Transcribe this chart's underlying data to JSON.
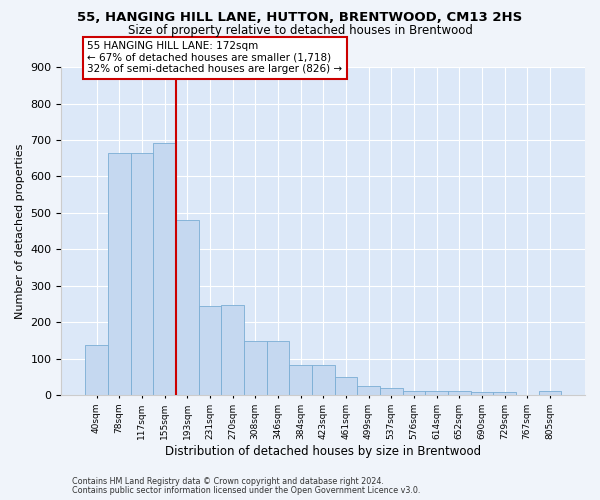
{
  "title": "55, HANGING HILL LANE, HUTTON, BRENTWOOD, CM13 2HS",
  "subtitle": "Size of property relative to detached houses in Brentwood",
  "xlabel": "Distribution of detached houses by size in Brentwood",
  "ylabel": "Number of detached properties",
  "categories": [
    "40sqm",
    "78sqm",
    "117sqm",
    "155sqm",
    "193sqm",
    "231sqm",
    "270sqm",
    "308sqm",
    "346sqm",
    "384sqm",
    "423sqm",
    "461sqm",
    "499sqm",
    "537sqm",
    "576sqm",
    "614sqm",
    "652sqm",
    "690sqm",
    "729sqm",
    "767sqm",
    "805sqm"
  ],
  "values": [
    138,
    665,
    665,
    693,
    480,
    245,
    248,
    148,
    148,
    83,
    83,
    50,
    25,
    18,
    10,
    10,
    10,
    8,
    8,
    0,
    10
  ],
  "bar_color": "#c5d8f0",
  "bar_edge_color": "#7aadd4",
  "vline_x": 3.5,
  "vline_color": "#cc0000",
  "annotation_text": "55 HANGING HILL LANE: 172sqm\n← 67% of detached houses are smaller (1,718)\n32% of semi-detached houses are larger (826) →",
  "footer_line1": "Contains HM Land Registry data © Crown copyright and database right 2024.",
  "footer_line2": "Contains public sector information licensed under the Open Government Licence v3.0.",
  "plot_bg_color": "#dce8f8",
  "fig_bg_color": "#f0f4fa",
  "ylim_max": 900,
  "yticks": [
    0,
    100,
    200,
    300,
    400,
    500,
    600,
    700,
    800,
    900
  ]
}
